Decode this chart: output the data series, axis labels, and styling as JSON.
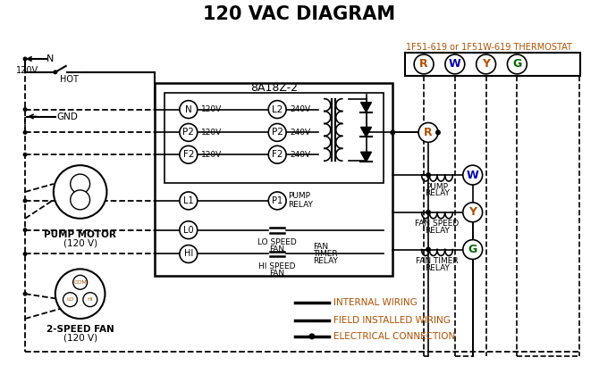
{
  "title": "120 VAC DIAGRAM",
  "bg_color": "#ffffff",
  "black": "#000000",
  "orange": "#b05000",
  "blue": "#0000aa",
  "green": "#006600",
  "thermostat_label": "1F51-619 or 1F51W-619 THERMOSTAT",
  "box_label": "8A18Z-2",
  "legend_internal": "INTERNAL WIRING",
  "legend_field": "FIELD INSTALLED WIRING",
  "legend_elec": "ELECTRICAL CONNECTION",
  "pump_motor_line1": "PUMP MOTOR",
  "pump_motor_line2": "(120 V)",
  "fan_line1": "2-SPEED FAN",
  "fan_line2": "(120 V)"
}
